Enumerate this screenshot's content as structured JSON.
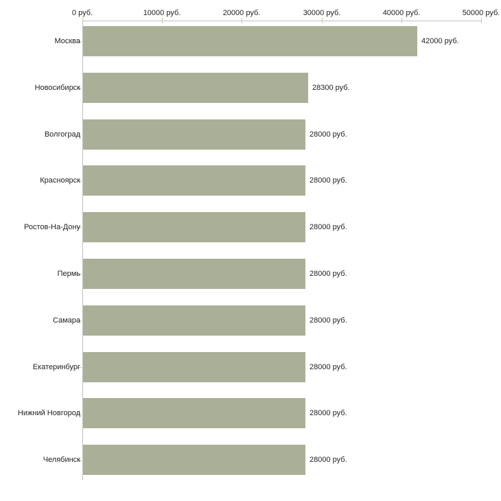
{
  "chart_data": {
    "type": "bar",
    "orientation": "horizontal",
    "title": "",
    "xlabel": "",
    "ylabel": "",
    "unit": "руб.",
    "categories": [
      "Москва",
      "Новосибирск",
      "Волгоград",
      "Красноярск",
      "Ростов-На-Дону",
      "Пермь",
      "Самара",
      "Екатеринбург",
      "Нижний Новгород",
      "Челябинск"
    ],
    "values": [
      42000,
      28300,
      28000,
      28000,
      28000,
      28000,
      28000,
      28000,
      28000,
      28000
    ],
    "value_labels": [
      "42000 руб.",
      "28300 руб.",
      "28000 руб.",
      "28000 руб.",
      "28000 руб.",
      "28000 руб.",
      "28000 руб.",
      "28000 руб.",
      "28000 руб.",
      "28000 руб."
    ],
    "x_axis": {
      "position": "top",
      "range": [
        0,
        50000
      ],
      "ticks": [
        0,
        10000,
        20000,
        30000,
        40000,
        50000
      ],
      "tick_labels": [
        "0 руб.",
        "10000 руб.",
        "20000 руб.",
        "30000 руб.",
        "40000 руб.",
        "50000 руб."
      ],
      "grid": false
    },
    "legend": null,
    "colors": {
      "bar": "#a9b097",
      "axis": "#c0c0c0",
      "tick": "#c6caa5",
      "text": "#222222",
      "background": "#ffffff"
    }
  }
}
